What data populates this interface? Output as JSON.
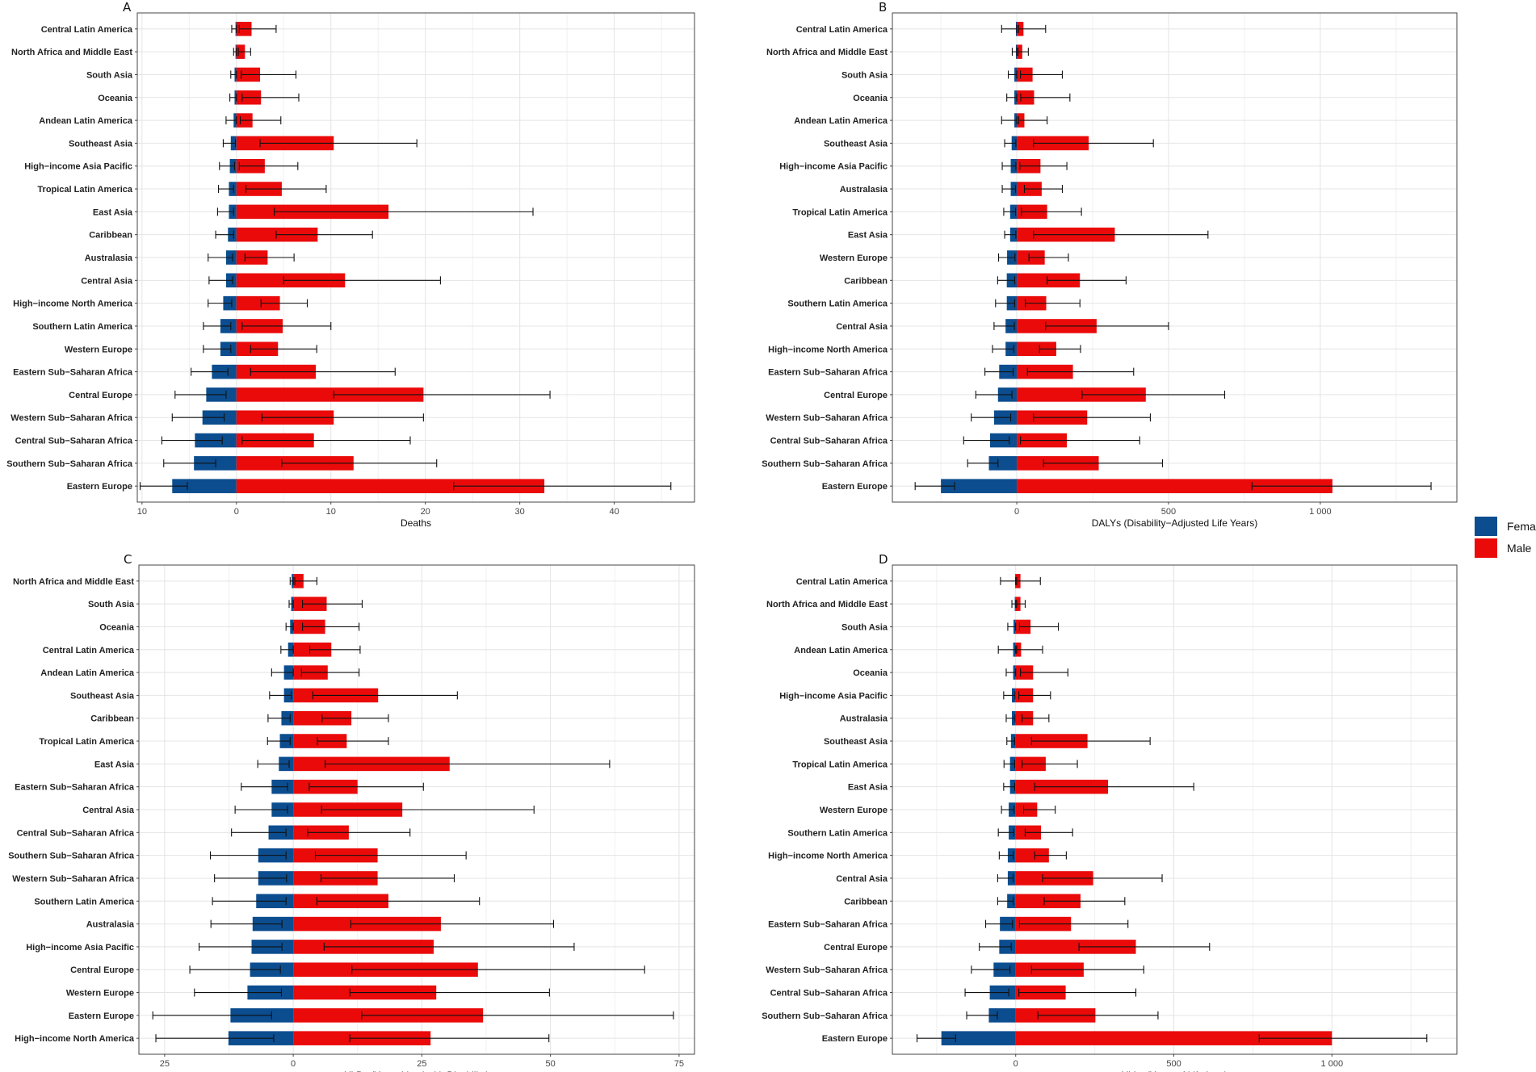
{
  "legend": {
    "items": [
      {
        "label": "Female",
        "color": "#0b4d8f"
      },
      {
        "label": "Male",
        "color": "#ea0a0a"
      }
    ]
  },
  "chart_data": [
    {
      "panel": "A",
      "type": "bar",
      "orientation": "horizontal",
      "xlabel": "Deaths",
      "xlim": [
        -10.5,
        48.5
      ],
      "ticks": [
        -10,
        0,
        10,
        20,
        30,
        40
      ],
      "tick_labels": [
        "10",
        "0",
        "10",
        "20",
        "30",
        "40"
      ],
      "categories": [
        "Central Latin America",
        "North Africa and Middle East",
        "South Asia",
        "Oceania",
        "Andean Latin America",
        "Southeast Asia",
        "High−income Asia Pacific",
        "Tropical Latin America",
        "East Asia",
        "Caribbean",
        "Australasia",
        "Central Asia",
        "High−income North America",
        "Southern Latin America",
        "Western Europe",
        "Eastern Sub−Saharan Africa",
        "Central Europe",
        "Western Sub−Saharan Africa",
        "Central Sub−Saharan Africa",
        "Southern Sub−Saharan Africa",
        "Eastern Europe"
      ],
      "series": [
        {
          "name": "Female",
          "values": [
            -0.1,
            -0.1,
            -0.2,
            -0.2,
            -0.3,
            -0.6,
            -0.7,
            -0.8,
            -0.8,
            -0.9,
            -1.1,
            -1.1,
            -1.4,
            -1.7,
            -1.7,
            -2.6,
            -3.2,
            -3.6,
            -4.4,
            -4.5,
            -6.8
          ],
          "lower": [
            -0.5,
            -0.3,
            -0.6,
            -0.7,
            -1.1,
            -1.4,
            -1.8,
            -1.9,
            -2.0,
            -2.2,
            -3.0,
            -2.9,
            -3.0,
            -3.5,
            -3.5,
            -4.8,
            -6.5,
            -6.8,
            -7.9,
            -7.7,
            -10.2
          ],
          "upper": [
            0,
            0,
            0,
            0,
            0,
            -0.1,
            -0.2,
            -0.3,
            -0.3,
            -0.3,
            -0.4,
            -0.4,
            -0.5,
            -0.6,
            -0.6,
            -0.9,
            -1.1,
            -1.3,
            -1.5,
            -2.2,
            -5.2
          ]
        },
        {
          "name": "Male",
          "values": [
            1.6,
            0.9,
            2.5,
            2.6,
            1.7,
            10.3,
            3.0,
            4.8,
            16.1,
            8.6,
            3.3,
            11.5,
            4.6,
            4.9,
            4.4,
            8.4,
            19.8,
            10.3,
            8.2,
            12.4,
            32.6
          ],
          "lower": [
            0.3,
            0.2,
            0.5,
            0.6,
            0.4,
            2.5,
            0.3,
            1.0,
            4.0,
            4.2,
            0.9,
            5.0,
            2.6,
            0.6,
            1.5,
            1.5,
            10.3,
            2.7,
            0.6,
            4.8,
            23.0
          ],
          "upper": [
            4.2,
            1.5,
            6.3,
            6.6,
            4.7,
            19.1,
            6.5,
            9.5,
            31.4,
            14.4,
            6.1,
            21.6,
            7.5,
            10.0,
            8.5,
            16.8,
            33.2,
            19.8,
            18.4,
            21.2,
            46.0
          ]
        }
      ]
    },
    {
      "panel": "B",
      "type": "bar",
      "orientation": "horizontal",
      "xlabel": "DALYs (Disability−Adjusted Life Years)",
      "xlim": [
        -410,
        1450
      ],
      "ticks": [
        0,
        500,
        1000
      ],
      "tick_labels": [
        "0",
        "500",
        "1 000"
      ],
      "categories": [
        "Central Latin America",
        "North Africa and Middle East",
        "South Asia",
        "Oceania",
        "Andean Latin America",
        "Southeast Asia",
        "High−income Asia Pacific",
        "Australasia",
        "Tropical Latin America",
        "East Asia",
        "Western Europe",
        "Caribbean",
        "Southern Latin America",
        "Central Asia",
        "High−income North America",
        "Eastern Sub−Saharan Africa",
        "Central Europe",
        "Western Sub−Saharan Africa",
        "Central Sub−Saharan Africa",
        "Southern Sub−Saharan Africa",
        "Eastern Europe"
      ],
      "series": [
        {
          "name": "Female",
          "values": [
            -3,
            -3,
            -8,
            -8,
            -8,
            -17,
            -20,
            -20,
            -22,
            -22,
            -32,
            -33,
            -33,
            -37,
            -37,
            -58,
            -62,
            -75,
            -88,
            -92,
            -250
          ],
          "lower": [
            -50,
            -15,
            -28,
            -33,
            -50,
            -40,
            -48,
            -48,
            -43,
            -40,
            -60,
            -63,
            -70,
            -75,
            -80,
            -105,
            -135,
            -150,
            -175,
            -162,
            -335
          ],
          "upper": [
            0,
            0,
            0,
            0,
            0,
            -3,
            -3,
            -4,
            -4,
            -3,
            -6,
            -7,
            -7,
            -8,
            -10,
            -12,
            -16,
            -20,
            -25,
            -62,
            -205
          ]
        },
        {
          "name": "Male",
          "values": [
            22,
            18,
            52,
            57,
            25,
            237,
            78,
            82,
            100,
            323,
            92,
            208,
            97,
            263,
            130,
            185,
            425,
            232,
            165,
            270,
            1040
          ],
          "lower": [
            6,
            4,
            12,
            13,
            6,
            55,
            10,
            25,
            15,
            55,
            40,
            100,
            28,
            95,
            75,
            35,
            215,
            55,
            12,
            88,
            775
          ],
          "upper": [
            95,
            38,
            150,
            175,
            100,
            450,
            165,
            150,
            213,
            630,
            170,
            360,
            208,
            500,
            210,
            385,
            685,
            440,
            405,
            480,
            1365
          ]
        }
      ]
    },
    {
      "panel": "C",
      "type": "bar",
      "orientation": "horizontal",
      "xlabel": "YLDs (Years Lived with Disability)",
      "xlim": [
        -30,
        78
      ],
      "ticks": [
        -25,
        0,
        25,
        50,
        75
      ],
      "tick_labels": [
        "25",
        "0",
        "25",
        "50",
        "75"
      ],
      "categories": [
        "North Africa and Middle East",
        "South Asia",
        "Oceania",
        "Central Latin America",
        "Andean Latin America",
        "Southeast Asia",
        "Caribbean",
        "Tropical Latin America",
        "East Asia",
        "Eastern Sub−Saharan Africa",
        "Central Asia",
        "Central Sub−Saharan Africa",
        "Southern Sub−Saharan Africa",
        "Western Sub−Saharan Africa",
        "Southern Latin America",
        "Australasia",
        "High−income Asia Pacific",
        "Central Europe",
        "Western Europe",
        "Eastern Europe",
        "High−income North America"
      ],
      "series": [
        {
          "name": "Female",
          "values": [
            -0.3,
            -0.4,
            -0.6,
            -1.0,
            -1.8,
            -1.8,
            -2.3,
            -2.6,
            -2.8,
            -4.2,
            -4.2,
            -4.8,
            -6.8,
            -6.8,
            -7.2,
            -7.9,
            -8.1,
            -8.4,
            -8.9,
            -12.2,
            -12.6
          ],
          "lower": [
            -0.6,
            -0.8,
            -1.4,
            -2.4,
            -4.2,
            -4.6,
            -4.9,
            -5.0,
            -6.9,
            -10.1,
            -11.3,
            -12.0,
            -16.1,
            -15.3,
            -15.7,
            -16.0,
            -18.3,
            -20.1,
            -19.2,
            -27.3,
            -26.7
          ],
          "upper": [
            0,
            0,
            0,
            0,
            0,
            -0.4,
            -0.6,
            -0.6,
            -0.8,
            -1.1,
            -1.1,
            -1.4,
            -1.4,
            -1.3,
            -1.4,
            -2.2,
            -2.2,
            -2.5,
            -2.3,
            -4.2,
            -3.8
          ]
        },
        {
          "name": "Male",
          "values": [
            2.0,
            6.5,
            6.2,
            7.4,
            6.7,
            16.5,
            11.3,
            10.4,
            30.4,
            12.5,
            21.2,
            10.8,
            16.4,
            16.4,
            18.5,
            28.7,
            27.3,
            35.9,
            27.8,
            36.9,
            26.7
          ],
          "lower": [
            0.3,
            1.8,
            1.8,
            3.2,
            1.6,
            3.8,
            5.6,
            4.7,
            6.2,
            3.1,
            5.5,
            2.8,
            4.3,
            5.4,
            4.6,
            11.2,
            6.0,
            11.4,
            11.0,
            13.3,
            11.0
          ],
          "upper": [
            4.6,
            13.4,
            12.8,
            13.0,
            12.8,
            31.9,
            18.5,
            18.5,
            61.5,
            25.3,
            46.8,
            22.7,
            33.6,
            31.3,
            36.2,
            50.6,
            54.6,
            68.3,
            49.8,
            73.9,
            49.7
          ]
        }
      ]
    },
    {
      "panel": "D",
      "type": "bar",
      "orientation": "horizontal",
      "xlabel": "YLLs (Years of Life Lost)",
      "xlim": [
        -390,
        1395
      ],
      "ticks": [
        0,
        500,
        1000
      ],
      "tick_labels": [
        "0",
        "500",
        "1 000"
      ],
      "categories": [
        "Central Latin America",
        "North Africa and Middle East",
        "South Asia",
        "Andean Latin America",
        "Oceania",
        "High−income Asia Pacific",
        "Australasia",
        "Southeast Asia",
        "Tropical Latin America",
        "East Asia",
        "Western Europe",
        "Southern Latin America",
        "High−income North America",
        "Central Asia",
        "Caribbean",
        "Eastern Sub−Saharan Africa",
        "Central Europe",
        "Western Sub−Saharan Africa",
        "Central Sub−Saharan Africa",
        "Southern Sub−Saharan Africa",
        "Eastern Europe"
      ],
      "series": [
        {
          "name": "Female",
          "values": [
            -2,
            -3,
            -7,
            -8,
            -8,
            -12,
            -12,
            -15,
            -18,
            -18,
            -22,
            -22,
            -25,
            -25,
            -27,
            -50,
            -52,
            -70,
            -82,
            -85,
            -235
          ],
          "lower": [
            -48,
            -12,
            -25,
            -55,
            -30,
            -38,
            -30,
            -28,
            -37,
            -38,
            -45,
            -55,
            -52,
            -57,
            -57,
            -95,
            -115,
            -140,
            -160,
            -155,
            -312
          ],
          "upper": [
            0,
            0,
            0,
            0,
            0,
            -2,
            -2,
            -3,
            -3,
            -3,
            -5,
            -6,
            -8,
            -8,
            -8,
            -10,
            -14,
            -18,
            -22,
            -58,
            -190
          ]
        },
        {
          "name": "Male",
          "values": [
            15,
            15,
            47,
            17,
            55,
            55,
            55,
            227,
            95,
            292,
            68,
            80,
            105,
            245,
            205,
            175,
            380,
            215,
            158,
            252,
            1000
          ],
          "lower": [
            3,
            3,
            12,
            3,
            15,
            10,
            20,
            50,
            20,
            60,
            25,
            30,
            60,
            85,
            90,
            12,
            200,
            50,
            10,
            70,
            770
          ],
          "upper": [
            78,
            30,
            135,
            85,
            165,
            110,
            105,
            425,
            195,
            563,
            125,
            180,
            160,
            463,
            345,
            355,
            613,
            405,
            380,
            450,
            1300
          ]
        }
      ]
    }
  ]
}
